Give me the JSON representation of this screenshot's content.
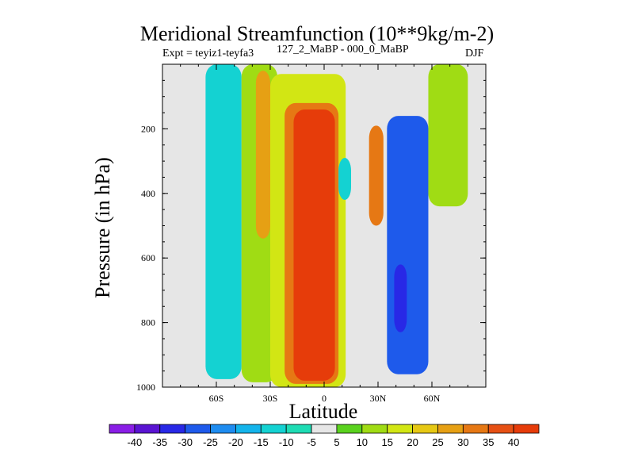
{
  "chart_data": {
    "type": "contour",
    "title": "Meridional Streamfunction (10**9kg/m-2)",
    "subtitle_left": "Expt = teyiz1-teyfa3",
    "subtitle_left_super": "127_2_MaBP - 000_0_MaBP",
    "subtitle_right": "DJF",
    "xlabel": "Latitude",
    "ylabel": "Pressure (in hPa)",
    "xlim": [
      -90,
      90
    ],
    "ylim": [
      1000,
      0
    ],
    "x_ticks": [
      {
        "value": -60,
        "label": "60S"
      },
      {
        "value": -30,
        "label": "30S"
      },
      {
        "value": 0,
        "label": "0"
      },
      {
        "value": 30,
        "label": "30N"
      },
      {
        "value": 60,
        "label": "60N"
      }
    ],
    "y_ticks": [
      {
        "value": 200,
        "label": "200"
      },
      {
        "value": 400,
        "label": "400"
      },
      {
        "value": 600,
        "label": "600"
      },
      {
        "value": 800,
        "label": "800"
      },
      {
        "value": 1000,
        "label": "1000"
      }
    ],
    "colorbar": {
      "labels": [
        "-40",
        "-35",
        "-30",
        "-25",
        "-20",
        "-15",
        "-10",
        "-5",
        "5",
        "10",
        "15",
        "20",
        "25",
        "30",
        "35",
        "40"
      ],
      "colors": [
        "#8a1ee6",
        "#5a14d2",
        "#2828e6",
        "#1e5aeb",
        "#1e8cf0",
        "#14b4eb",
        "#14d2d2",
        "#1edcb4",
        "#e6e6e6",
        "#5ad21e",
        "#a0dc14",
        "#d2e614",
        "#e6c814",
        "#e6a014",
        "#e67814",
        "#e65014",
        "#e63c0a"
      ]
    },
    "regions": [
      {
        "name": "sh-polar-cell",
        "value": -15,
        "lat": [
          -66,
          -46
        ],
        "p_top": 0,
        "p_bottom": 975
      },
      {
        "name": "sh-ferrel-edge",
        "value": 10,
        "lat": [
          -46,
          -26
        ],
        "p_top": 0,
        "p_bottom": 985
      },
      {
        "name": "sh-ferrel-core",
        "value": 25,
        "lat": [
          -38,
          -30
        ],
        "p_top": 20,
        "p_bottom": 540
      },
      {
        "name": "hadley-outer",
        "value": 15,
        "lat": [
          -30,
          12
        ],
        "p_top": 30,
        "p_bottom": 1000
      },
      {
        "name": "hadley-mid",
        "value": 30,
        "lat": [
          -22,
          8
        ],
        "p_top": 120,
        "p_bottom": 990
      },
      {
        "name": "hadley-core",
        "value": 40,
        "lat": [
          -17,
          6
        ],
        "p_top": 140,
        "p_bottom": 980
      },
      {
        "name": "tropical-negative",
        "value": -15,
        "lat": [
          8,
          15
        ],
        "p_top": 290,
        "p_bottom": 420
      },
      {
        "name": "nh-positive-core",
        "value": 30,
        "lat": [
          25,
          33
        ],
        "p_top": 190,
        "p_bottom": 500
      },
      {
        "name": "nh-ferrel-negative",
        "value": -30,
        "lat": [
          35,
          58
        ],
        "p_top": 160,
        "p_bottom": 960
      },
      {
        "name": "nh-ferrel-core",
        "value": -35,
        "lat": [
          39,
          46
        ],
        "p_top": 620,
        "p_bottom": 830
      },
      {
        "name": "nh-polar-positive",
        "value": 10,
        "lat": [
          58,
          80
        ],
        "p_top": 0,
        "p_bottom": 440
      }
    ]
  }
}
